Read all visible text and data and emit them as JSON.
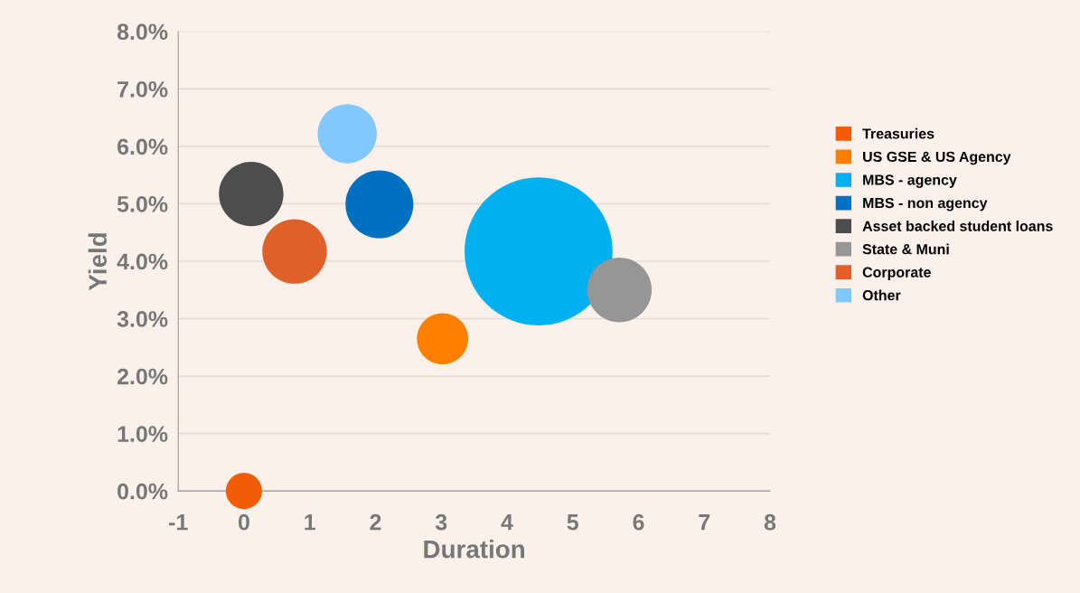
{
  "chart_data": {
    "type": "bubble",
    "xlabel": "Duration",
    "ylabel": "Yield",
    "xlim": [
      -1,
      8
    ],
    "xticks": [
      -1,
      0,
      1,
      2,
      3,
      4,
      5,
      6,
      7,
      8
    ],
    "ylim": [
      0,
      8
    ],
    "yticks": [
      {
        "value": 0,
        "label": "0.0%"
      },
      {
        "value": 1,
        "label": "1.0%"
      },
      {
        "value": 2,
        "label": "2.0%"
      },
      {
        "value": 3,
        "label": "3.0%"
      },
      {
        "value": 4,
        "label": "4.0%"
      },
      {
        "value": 5,
        "label": "5.0%"
      },
      {
        "value": 6,
        "label": "6.0%"
      },
      {
        "value": 7,
        "label": "7.0%"
      },
      {
        "value": 8,
        "label": "8.0%"
      }
    ],
    "grid": "y",
    "legend": "right",
    "series": [
      {
        "name": "Treasuries",
        "color": "#f25c05",
        "x": [
          0
        ],
        "values": [
          0
        ],
        "sizes": [
          0.06
        ]
      },
      {
        "name": "US GSE & US Agency",
        "color": "#ff8000",
        "x": [
          3.02
        ],
        "values": [
          2.65
        ],
        "sizes": [
          0.12
        ]
      },
      {
        "name": "MBS - agency",
        "color": "#00b0f0",
        "x": [
          4.48
        ],
        "values": [
          4.17
        ],
        "sizes": [
          1
        ]
      },
      {
        "name": "MBS - non agency",
        "color": "#0070c0",
        "x": [
          2.06
        ],
        "values": [
          4.99
        ],
        "sizes": [
          0.21
        ]
      },
      {
        "name": "Asset backed student loans",
        "color": "#4d4d4d",
        "x": [
          0.11
        ],
        "values": [
          5.17
        ],
        "sizes": [
          0.19
        ]
      },
      {
        "name": "State & Muni",
        "color": "#969696",
        "x": [
          5.71
        ],
        "values": [
          3.5
        ],
        "sizes": [
          0.19
        ]
      },
      {
        "name": "Corporate",
        "color": "#e0602a",
        "x": [
          0.77
        ],
        "values": [
          4.17
        ],
        "sizes": [
          0.19
        ]
      },
      {
        "name": "Other",
        "color": "#80c8ff",
        "x": [
          1.57
        ],
        "values": [
          6.22
        ],
        "sizes": [
          0.16
        ]
      }
    ]
  }
}
